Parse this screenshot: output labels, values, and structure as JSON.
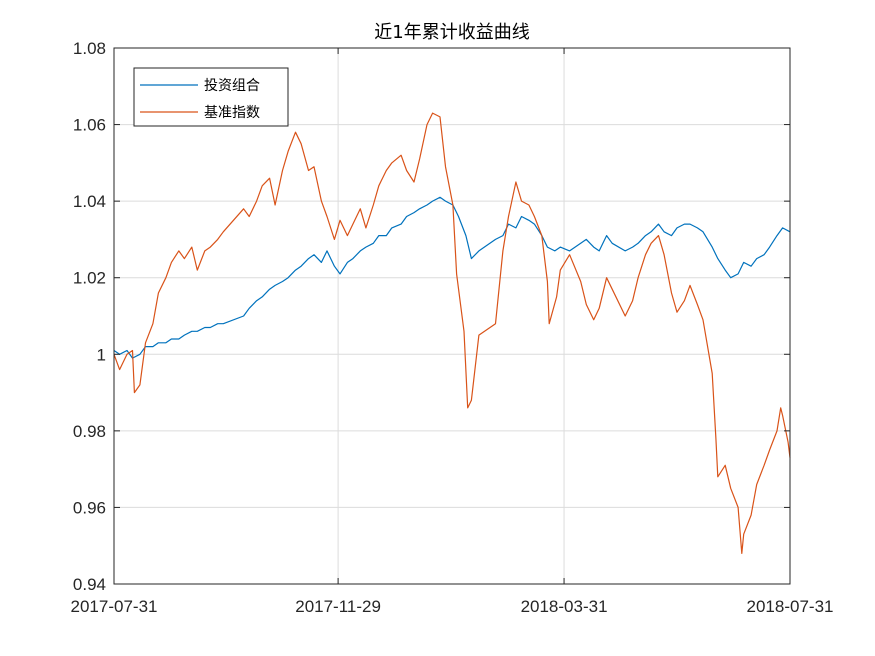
{
  "chart_data": {
    "type": "line",
    "title": "近1年累计收益曲线",
    "xlabel": "",
    "ylabel": "",
    "x_ticks": [
      "2017-07-31",
      "2017-11-29",
      "2018-03-31",
      "2018-07-31"
    ],
    "x_range": [
      "2017-07-31",
      "2018-07-31"
    ],
    "y_ticks": [
      "0.94",
      "0.96",
      "0.98",
      "1",
      "1.02",
      "1.04",
      "1.06",
      "1.08"
    ],
    "ylim": [
      0.94,
      1.08
    ],
    "grid": true,
    "legend_position": "top-left",
    "series": [
      {
        "name": "投资组合",
        "color": "#0072BD",
        "points": [
          [
            "2017-07-31",
            1.001
          ],
          [
            "2017-08-03",
            1.0
          ],
          [
            "2017-08-07",
            1.001
          ],
          [
            "2017-08-10",
            0.999
          ],
          [
            "2017-08-14",
            1.0
          ],
          [
            "2017-08-17",
            1.002
          ],
          [
            "2017-08-21",
            1.002
          ],
          [
            "2017-08-24",
            1.003
          ],
          [
            "2017-08-28",
            1.003
          ],
          [
            "2017-08-31",
            1.004
          ],
          [
            "2017-09-04",
            1.004
          ],
          [
            "2017-09-07",
            1.005
          ],
          [
            "2017-09-11",
            1.006
          ],
          [
            "2017-09-14",
            1.006
          ],
          [
            "2017-09-18",
            1.007
          ],
          [
            "2017-09-21",
            1.007
          ],
          [
            "2017-09-25",
            1.008
          ],
          [
            "2017-09-28",
            1.008
          ],
          [
            "2017-10-09",
            1.01
          ],
          [
            "2017-10-12",
            1.012
          ],
          [
            "2017-10-16",
            1.014
          ],
          [
            "2017-10-19",
            1.015
          ],
          [
            "2017-10-23",
            1.017
          ],
          [
            "2017-10-26",
            1.018
          ],
          [
            "2017-10-30",
            1.019
          ],
          [
            "2017-11-02",
            1.02
          ],
          [
            "2017-11-06",
            1.022
          ],
          [
            "2017-11-09",
            1.023
          ],
          [
            "2017-11-13",
            1.025
          ],
          [
            "2017-11-16",
            1.026
          ],
          [
            "2017-11-20",
            1.024
          ],
          [
            "2017-11-23",
            1.027
          ],
          [
            "2017-11-27",
            1.023
          ],
          [
            "2017-11-30",
            1.021
          ],
          [
            "2017-12-04",
            1.024
          ],
          [
            "2017-12-07",
            1.025
          ],
          [
            "2017-12-11",
            1.027
          ],
          [
            "2017-12-14",
            1.028
          ],
          [
            "2017-12-18",
            1.029
          ],
          [
            "2017-12-21",
            1.031
          ],
          [
            "2017-12-25",
            1.031
          ],
          [
            "2017-12-28",
            1.033
          ],
          [
            "2018-01-02",
            1.034
          ],
          [
            "2018-01-05",
            1.036
          ],
          [
            "2018-01-09",
            1.037
          ],
          [
            "2018-01-12",
            1.038
          ],
          [
            "2018-01-16",
            1.039
          ],
          [
            "2018-01-19",
            1.04
          ],
          [
            "2018-01-23",
            1.041
          ],
          [
            "2018-01-26",
            1.04
          ],
          [
            "2018-01-30",
            1.039
          ],
          [
            "2018-02-02",
            1.036
          ],
          [
            "2018-02-06",
            1.031
          ],
          [
            "2018-02-09",
            1.025
          ],
          [
            "2018-02-13",
            1.027
          ],
          [
            "2018-02-22",
            1.03
          ],
          [
            "2018-02-26",
            1.031
          ],
          [
            "2018-03-01",
            1.034
          ],
          [
            "2018-03-05",
            1.033
          ],
          [
            "2018-03-08",
            1.036
          ],
          [
            "2018-03-12",
            1.035
          ],
          [
            "2018-03-15",
            1.034
          ],
          [
            "2018-03-19",
            1.031
          ],
          [
            "2018-03-22",
            1.028
          ],
          [
            "2018-03-26",
            1.027
          ],
          [
            "2018-03-29",
            1.028
          ],
          [
            "2018-04-03",
            1.027
          ],
          [
            "2018-04-09",
            1.029
          ],
          [
            "2018-04-12",
            1.03
          ],
          [
            "2018-04-16",
            1.028
          ],
          [
            "2018-04-19",
            1.027
          ],
          [
            "2018-04-23",
            1.031
          ],
          [
            "2018-04-26",
            1.029
          ],
          [
            "2018-05-03",
            1.027
          ],
          [
            "2018-05-07",
            1.028
          ],
          [
            "2018-05-10",
            1.029
          ],
          [
            "2018-05-14",
            1.031
          ],
          [
            "2018-05-17",
            1.032
          ],
          [
            "2018-05-21",
            1.034
          ],
          [
            "2018-05-24",
            1.032
          ],
          [
            "2018-05-28",
            1.031
          ],
          [
            "2018-05-31",
            1.033
          ],
          [
            "2018-06-04",
            1.034
          ],
          [
            "2018-06-07",
            1.034
          ],
          [
            "2018-06-11",
            1.033
          ],
          [
            "2018-06-14",
            1.032
          ],
          [
            "2018-06-19",
            1.028
          ],
          [
            "2018-06-22",
            1.025
          ],
          [
            "2018-06-26",
            1.022
          ],
          [
            "2018-06-29",
            1.02
          ],
          [
            "2018-07-03",
            1.021
          ],
          [
            "2018-07-06",
            1.024
          ],
          [
            "2018-07-10",
            1.023
          ],
          [
            "2018-07-13",
            1.025
          ],
          [
            "2018-07-17",
            1.026
          ],
          [
            "2018-07-20",
            1.028
          ],
          [
            "2018-07-24",
            1.031
          ],
          [
            "2018-07-27",
            1.033
          ],
          [
            "2018-07-31",
            1.032
          ]
        ]
      },
      {
        "name": "基准指数",
        "color": "#D95319",
        "points": [
          [
            "2017-07-31",
            1.0
          ],
          [
            "2017-08-03",
            0.996
          ],
          [
            "2017-08-07",
            1.0
          ],
          [
            "2017-08-10",
            1.001
          ],
          [
            "2017-08-11",
            0.99
          ],
          [
            "2017-08-14",
            0.992
          ],
          [
            "2017-08-17",
            1.003
          ],
          [
            "2017-08-21",
            1.008
          ],
          [
            "2017-08-24",
            1.016
          ],
          [
            "2017-08-28",
            1.02
          ],
          [
            "2017-08-31",
            1.024
          ],
          [
            "2017-09-04",
            1.027
          ],
          [
            "2017-09-07",
            1.025
          ],
          [
            "2017-09-11",
            1.028
          ],
          [
            "2017-09-14",
            1.022
          ],
          [
            "2017-09-18",
            1.027
          ],
          [
            "2017-09-21",
            1.028
          ],
          [
            "2017-09-25",
            1.03
          ],
          [
            "2017-09-28",
            1.032
          ],
          [
            "2017-10-09",
            1.038
          ],
          [
            "2017-10-12",
            1.036
          ],
          [
            "2017-10-16",
            1.04
          ],
          [
            "2017-10-19",
            1.044
          ],
          [
            "2017-10-23",
            1.046
          ],
          [
            "2017-10-26",
            1.039
          ],
          [
            "2017-10-30",
            1.048
          ],
          [
            "2017-11-02",
            1.053
          ],
          [
            "2017-11-06",
            1.058
          ],
          [
            "2017-11-09",
            1.055
          ],
          [
            "2017-11-13",
            1.048
          ],
          [
            "2017-11-16",
            1.049
          ],
          [
            "2017-11-20",
            1.04
          ],
          [
            "2017-11-23",
            1.036
          ],
          [
            "2017-11-27",
            1.03
          ],
          [
            "2017-11-30",
            1.035
          ],
          [
            "2017-12-04",
            1.031
          ],
          [
            "2017-12-07",
            1.034
          ],
          [
            "2017-12-11",
            1.038
          ],
          [
            "2017-12-14",
            1.033
          ],
          [
            "2017-12-18",
            1.039
          ],
          [
            "2017-12-21",
            1.044
          ],
          [
            "2017-12-25",
            1.048
          ],
          [
            "2017-12-28",
            1.05
          ],
          [
            "2018-01-02",
            1.052
          ],
          [
            "2018-01-05",
            1.048
          ],
          [
            "2018-01-09",
            1.045
          ],
          [
            "2018-01-12",
            1.051
          ],
          [
            "2018-01-16",
            1.06
          ],
          [
            "2018-01-19",
            1.063
          ],
          [
            "2018-01-23",
            1.062
          ],
          [
            "2018-01-26",
            1.049
          ],
          [
            "2018-01-30",
            1.039
          ],
          [
            "2018-02-01",
            1.021
          ],
          [
            "2018-02-05",
            1.006
          ],
          [
            "2018-02-07",
            0.986
          ],
          [
            "2018-02-09",
            0.988
          ],
          [
            "2018-02-13",
            1.005
          ],
          [
            "2018-02-22",
            1.008
          ],
          [
            "2018-02-26",
            1.027
          ],
          [
            "2018-03-01",
            1.036
          ],
          [
            "2018-03-05",
            1.045
          ],
          [
            "2018-03-08",
            1.04
          ],
          [
            "2018-03-12",
            1.039
          ],
          [
            "2018-03-15",
            1.036
          ],
          [
            "2018-03-19",
            1.031
          ],
          [
            "2018-03-22",
            1.019
          ],
          [
            "2018-03-23",
            1.008
          ],
          [
            "2018-03-27",
            1.015
          ],
          [
            "2018-03-29",
            1.022
          ],
          [
            "2018-04-03",
            1.026
          ],
          [
            "2018-04-09",
            1.019
          ],
          [
            "2018-04-12",
            1.013
          ],
          [
            "2018-04-16",
            1.009
          ],
          [
            "2018-04-19",
            1.012
          ],
          [
            "2018-04-23",
            1.02
          ],
          [
            "2018-04-26",
            1.017
          ],
          [
            "2018-05-03",
            1.01
          ],
          [
            "2018-05-07",
            1.014
          ],
          [
            "2018-05-10",
            1.02
          ],
          [
            "2018-05-14",
            1.026
          ],
          [
            "2018-05-17",
            1.029
          ],
          [
            "2018-05-21",
            1.031
          ],
          [
            "2018-05-24",
            1.026
          ],
          [
            "2018-05-28",
            1.016
          ],
          [
            "2018-05-31",
            1.011
          ],
          [
            "2018-06-04",
            1.014
          ],
          [
            "2018-06-07",
            1.018
          ],
          [
            "2018-06-11",
            1.013
          ],
          [
            "2018-06-14",
            1.009
          ],
          [
            "2018-06-19",
            0.995
          ],
          [
            "2018-06-21",
            0.978
          ],
          [
            "2018-06-22",
            0.968
          ],
          [
            "2018-06-26",
            0.971
          ],
          [
            "2018-06-29",
            0.965
          ],
          [
            "2018-07-03",
            0.96
          ],
          [
            "2018-07-05",
            0.948
          ],
          [
            "2018-07-06",
            0.953
          ],
          [
            "2018-07-10",
            0.958
          ],
          [
            "2018-07-13",
            0.966
          ],
          [
            "2018-07-17",
            0.971
          ],
          [
            "2018-07-20",
            0.975
          ],
          [
            "2018-07-24",
            0.98
          ],
          [
            "2018-07-26",
            0.986
          ],
          [
            "2018-07-27",
            0.984
          ],
          [
            "2018-07-30",
            0.977
          ],
          [
            "2018-07-31",
            0.973
          ]
        ]
      }
    ]
  }
}
